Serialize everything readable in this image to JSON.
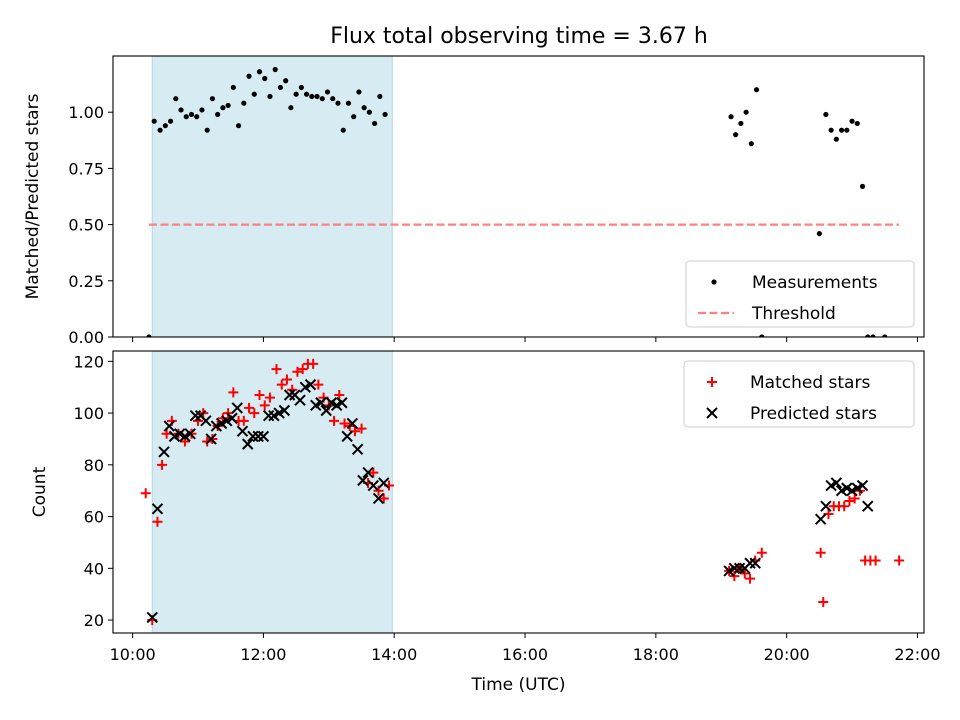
{
  "title": "Flux total observing time = 3.67 h",
  "chart_data": [
    {
      "type": "scatter",
      "ylabel": "Matched/Predicted stars",
      "xlim": [
        9.7,
        22.1
      ],
      "ylim": [
        0,
        1.25
      ],
      "yticks": [
        0.0,
        0.25,
        0.5,
        0.75,
        1.0
      ],
      "ytick_labels": [
        "0.00",
        "0.25",
        "0.50",
        "0.75",
        "1.00"
      ],
      "shaded_span": {
        "x": [
          10.3,
          13.97
        ],
        "color": "#add8e6"
      },
      "legend_location": "lower right",
      "series": [
        {
          "name": "Measurements",
          "marker": "dot",
          "color": "#000000",
          "points": [
            [
              10.25,
              0.0
            ],
            [
              10.33,
              0.96
            ],
            [
              10.42,
              0.92
            ],
            [
              10.5,
              0.94
            ],
            [
              10.58,
              0.96
            ],
            [
              10.66,
              1.06
            ],
            [
              10.74,
              1.01
            ],
            [
              10.82,
              0.98
            ],
            [
              10.9,
              0.99
            ],
            [
              10.98,
              0.98
            ],
            [
              11.06,
              1.01
            ],
            [
              11.14,
              0.92
            ],
            [
              11.22,
              1.06
            ],
            [
              11.3,
              0.99
            ],
            [
              11.38,
              1.02
            ],
            [
              11.46,
              1.03
            ],
            [
              11.54,
              1.11
            ],
            [
              11.62,
              0.94
            ],
            [
              11.7,
              1.04
            ],
            [
              11.78,
              1.16
            ],
            [
              11.86,
              1.08
            ],
            [
              11.94,
              1.18
            ],
            [
              12.02,
              1.15
            ],
            [
              12.1,
              1.07
            ],
            [
              12.18,
              1.19
            ],
            [
              12.26,
              1.11
            ],
            [
              12.34,
              1.14
            ],
            [
              12.42,
              1.02
            ],
            [
              12.5,
              1.08
            ],
            [
              12.58,
              1.11
            ],
            [
              12.66,
              1.08
            ],
            [
              12.74,
              1.07
            ],
            [
              12.82,
              1.07
            ],
            [
              12.9,
              1.06
            ],
            [
              12.98,
              1.09
            ],
            [
              13.06,
              1.06
            ],
            [
              13.14,
              1.04
            ],
            [
              13.22,
              0.92
            ],
            [
              13.3,
              1.04
            ],
            [
              13.38,
              0.98
            ],
            [
              13.46,
              1.09
            ],
            [
              13.54,
              1.02
            ],
            [
              13.62,
              1.0
            ],
            [
              13.7,
              0.95
            ],
            [
              13.78,
              1.07
            ],
            [
              13.86,
              0.99
            ],
            [
              19.15,
              0.98
            ],
            [
              19.22,
              0.9
            ],
            [
              19.3,
              0.95
            ],
            [
              19.38,
              1.0
            ],
            [
              19.46,
              0.86
            ],
            [
              19.54,
              1.1
            ],
            [
              19.62,
              0.0
            ],
            [
              20.5,
              0.46
            ],
            [
              20.6,
              0.99
            ],
            [
              20.68,
              0.92
            ],
            [
              20.76,
              0.88
            ],
            [
              20.84,
              0.92
            ],
            [
              20.92,
              0.92
            ],
            [
              21.0,
              0.96
            ],
            [
              21.08,
              0.95
            ],
            [
              21.16,
              0.67
            ],
            [
              21.24,
              0.0
            ],
            [
              21.32,
              0.0
            ],
            [
              21.5,
              0.0
            ]
          ]
        },
        {
          "name": "Threshold",
          "type": "dashed-line",
          "color": "#ff8080",
          "points": [
            [
              10.25,
              0.5
            ],
            [
              21.72,
              0.5
            ]
          ]
        }
      ]
    },
    {
      "type": "scatter",
      "xlabel": "Time (UTC)",
      "ylabel": "Count",
      "xlim": [
        9.7,
        22.1
      ],
      "ylim": [
        15,
        124
      ],
      "xticks": [
        10,
        12,
        14,
        16,
        18,
        20,
        22
      ],
      "xtick_labels": [
        "10:00",
        "12:00",
        "14:00",
        "16:00",
        "18:00",
        "20:00",
        "22:00"
      ],
      "yticks": [
        20,
        40,
        60,
        80,
        100,
        120
      ],
      "ytick_labels": [
        "20",
        "40",
        "60",
        "80",
        "100",
        "120"
      ],
      "shaded_span": {
        "x": [
          10.3,
          13.97
        ],
        "color": "#add8e6"
      },
      "legend_location": "upper right",
      "series": [
        {
          "name": "Matched stars",
          "marker": "plus",
          "color": "#ff0000",
          "points": [
            [
              10.2,
              69
            ],
            [
              10.3,
              20
            ],
            [
              10.38,
              58
            ],
            [
              10.45,
              80
            ],
            [
              10.52,
              92
            ],
            [
              10.6,
              97
            ],
            [
              10.7,
              92
            ],
            [
              10.8,
              89
            ],
            [
              10.9,
              92
            ],
            [
              11.0,
              97
            ],
            [
              11.08,
              100
            ],
            [
              11.14,
              89
            ],
            [
              11.22,
              90
            ],
            [
              11.3,
              95
            ],
            [
              11.38,
              98
            ],
            [
              11.46,
              100
            ],
            [
              11.54,
              108
            ],
            [
              11.62,
              97
            ],
            [
              11.7,
              97
            ],
            [
              11.78,
              102
            ],
            [
              11.86,
              100
            ],
            [
              11.94,
              107
            ],
            [
              12.02,
              103
            ],
            [
              12.1,
              106
            ],
            [
              12.2,
              117
            ],
            [
              12.28,
              111
            ],
            [
              12.36,
              113
            ],
            [
              12.44,
              109
            ],
            [
              12.52,
              116
            ],
            [
              12.6,
              117
            ],
            [
              12.68,
              119
            ],
            [
              12.76,
              119
            ],
            [
              12.84,
              111
            ],
            [
              12.92,
              106
            ],
            [
              13.0,
              103
            ],
            [
              13.08,
              97
            ],
            [
              13.16,
              107
            ],
            [
              13.24,
              96
            ],
            [
              13.32,
              95
            ],
            [
              13.4,
              93
            ],
            [
              13.5,
              94
            ],
            [
              13.6,
              73
            ],
            [
              13.68,
              77
            ],
            [
              13.76,
              70
            ],
            [
              13.84,
              67
            ],
            [
              13.92,
              72
            ],
            [
              19.12,
              39
            ],
            [
              19.2,
              37
            ],
            [
              19.28,
              40
            ],
            [
              19.36,
              38
            ],
            [
              19.44,
              36
            ],
            [
              19.52,
              43
            ],
            [
              19.62,
              46
            ],
            [
              20.52,
              46
            ],
            [
              20.56,
              27
            ],
            [
              20.64,
              61
            ],
            [
              20.72,
              64
            ],
            [
              20.8,
              64
            ],
            [
              20.88,
              64
            ],
            [
              20.96,
              66
            ],
            [
              21.04,
              67
            ],
            [
              21.12,
              70
            ],
            [
              21.2,
              43
            ],
            [
              21.28,
              43
            ],
            [
              21.36,
              43
            ],
            [
              21.72,
              43
            ]
          ]
        },
        {
          "name": "Predicted stars",
          "marker": "x",
          "color": "#000000",
          "points": [
            [
              10.3,
              21
            ],
            [
              10.38,
              63
            ],
            [
              10.48,
              85
            ],
            [
              10.56,
              95
            ],
            [
              10.64,
              91
            ],
            [
              10.72,
              92
            ],
            [
              10.8,
              91
            ],
            [
              10.88,
              92
            ],
            [
              10.96,
              99
            ],
            [
              11.04,
              99
            ],
            [
              11.12,
              97
            ],
            [
              11.2,
              90
            ],
            [
              11.28,
              95
            ],
            [
              11.36,
              96
            ],
            [
              11.44,
              97
            ],
            [
              11.52,
              98
            ],
            [
              11.6,
              102
            ],
            [
              11.68,
              93
            ],
            [
              11.76,
              88
            ],
            [
              11.84,
              91
            ],
            [
              11.92,
              91
            ],
            [
              12.0,
              91
            ],
            [
              12.08,
              99
            ],
            [
              12.16,
              99
            ],
            [
              12.24,
              100
            ],
            [
              12.32,
              101
            ],
            [
              12.4,
              107
            ],
            [
              12.48,
              107
            ],
            [
              12.56,
              105
            ],
            [
              12.64,
              110
            ],
            [
              12.72,
              111
            ],
            [
              12.8,
              103
            ],
            [
              12.88,
              104
            ],
            [
              12.96,
              101
            ],
            [
              13.04,
              104
            ],
            [
              13.12,
              103
            ],
            [
              13.2,
              104
            ],
            [
              13.28,
              91
            ],
            [
              13.36,
              96
            ],
            [
              13.44,
              86
            ],
            [
              13.52,
              74
            ],
            [
              13.6,
              77
            ],
            [
              13.68,
              72
            ],
            [
              13.76,
              67
            ],
            [
              13.84,
              73
            ],
            [
              19.12,
              39
            ],
            [
              19.2,
              40
            ],
            [
              19.28,
              40
            ],
            [
              19.36,
              40
            ],
            [
              19.44,
              42
            ],
            [
              19.52,
              42
            ],
            [
              20.52,
              59
            ],
            [
              20.6,
              64
            ],
            [
              20.68,
              72
            ],
            [
              20.76,
              73
            ],
            [
              20.84,
              70
            ],
            [
              20.92,
              71
            ],
            [
              21.0,
              70
            ],
            [
              21.08,
              71
            ],
            [
              21.16,
              72
            ],
            [
              21.24,
              64
            ]
          ]
        }
      ]
    }
  ]
}
